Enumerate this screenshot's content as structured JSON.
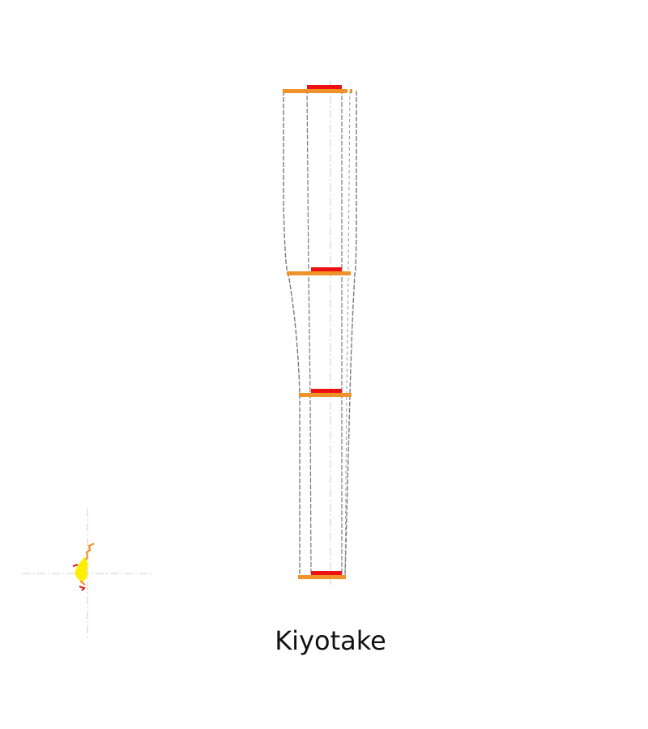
{
  "caption": "Kiyotake",
  "colors": {
    "outline": "#7a7a7a",
    "axis": "#c8c8c8",
    "red_plate": "#ee1111",
    "orange_plate": "#f0922a",
    "yellow": "#ffee00",
    "background": "#ffffff"
  },
  "legend_glyph": {
    "name": "kiyotake-section-glyph",
    "colors": [
      "#ffee00",
      "#f0922a",
      "#ee1111"
    ]
  }
}
